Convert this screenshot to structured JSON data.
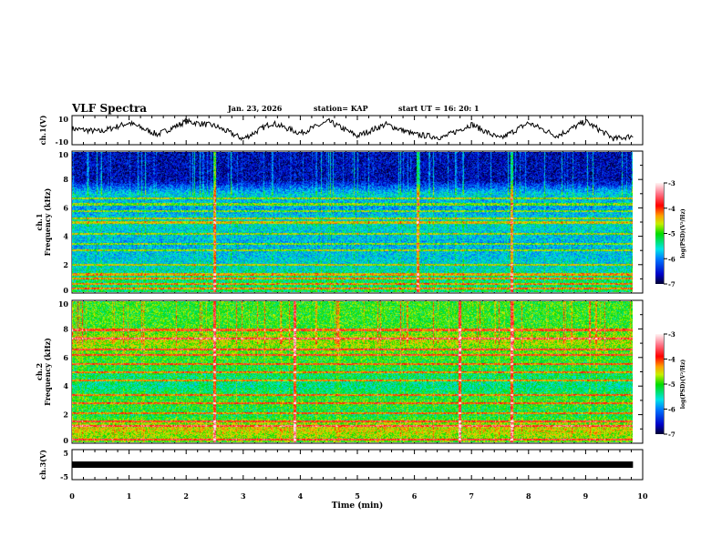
{
  "header": {
    "title": "VLF Spectra",
    "date": "Jan. 23, 2026",
    "station": "station= KAP",
    "start": "start  UT =   16: 20: 1"
  },
  "chart_data": [
    {
      "type": "line",
      "name": "ch1",
      "ylabel": "ch.1(V)",
      "ylim": [
        -10,
        10
      ],
      "yticks": [
        "10",
        "-10"
      ],
      "x": [
        0,
        0.5,
        1,
        1.5,
        2,
        2.5,
        3,
        3.5,
        4,
        4.5,
        5,
        5.5,
        6,
        6.5,
        7,
        7.5,
        8,
        8.5,
        9,
        9.5,
        9.83
      ],
      "y": [
        1,
        -1,
        5,
        -3,
        6,
        3,
        -6,
        5,
        -2,
        6,
        -4,
        4,
        -3,
        -5,
        4,
        -6,
        5,
        -4,
        6,
        -6,
        -4
      ]
    },
    {
      "type": "heatmap",
      "name": "ch2-spectrogram",
      "ylabel": "ch.1\nFrequency (kHz)",
      "ylim": [
        0,
        10
      ],
      "yticks": [
        "0",
        "2",
        "4",
        "6",
        "8",
        "10"
      ],
      "colorbar": {
        "label": "log(PSD)(V²/Hz)",
        "range": [
          -7,
          -3
        ],
        "ticks": [
          "-3",
          "-4",
          "-5",
          "-6",
          "-7"
        ]
      },
      "background_by_khz": [
        [
          0,
          -5.2
        ],
        [
          1,
          -5.3
        ],
        [
          2,
          -5.6
        ],
        [
          3.5,
          -5.8
        ],
        [
          5,
          -5.5
        ],
        [
          6,
          -5.9
        ],
        [
          7,
          -5.6
        ],
        [
          8,
          -6.6
        ],
        [
          10,
          -6.6
        ]
      ],
      "bands_khz": [
        0.3,
        0.6,
        1.0,
        1.3,
        2.0,
        3.0,
        3.5,
        4.2,
        5.0,
        5.3,
        5.8,
        6.3,
        6.7
      ],
      "impulses_min": [
        2.5,
        6.05,
        7.7
      ]
    },
    {
      "type": "heatmap",
      "name": "ch3-spectrogram",
      "ylabel": "ch.2\nFrequency (kHz)",
      "ylim": [
        0,
        10
      ],
      "yticks": [
        "0",
        "2",
        "4",
        "6",
        "8",
        "10"
      ],
      "colorbar": {
        "label": "log(PSD)(V²/Hz)",
        "range": [
          -7,
          -3
        ],
        "ticks": [
          "-3",
          "-4",
          "-5",
          "-6",
          "-7"
        ]
      },
      "background_by_khz": [
        [
          0,
          -4.9
        ],
        [
          1,
          -4.5
        ],
        [
          2,
          -5.2
        ],
        [
          3,
          -5.0
        ],
        [
          4,
          -5.4
        ],
        [
          6,
          -5.0
        ],
        [
          7.4,
          -4.6
        ],
        [
          8,
          -5.0
        ],
        [
          10,
          -5.0
        ]
      ],
      "bands_khz": [
        0.2,
        1.2,
        1.5,
        2.1,
        2.8,
        3.4,
        4.4,
        5.0,
        5.6,
        6.2,
        6.6,
        7.4,
        8.0
      ],
      "impulses_min": [
        2.5,
        3.9,
        6.8,
        7.7
      ]
    },
    {
      "type": "line",
      "name": "ch3",
      "ylabel": "ch.3(V)",
      "ylim": [
        -5,
        5
      ],
      "yticks": [
        "5",
        "-5"
      ],
      "x": [
        0,
        9.83
      ],
      "y": [
        0,
        0
      ]
    }
  ],
  "xaxis": {
    "label": "Time (min)",
    "range": [
      0,
      10
    ],
    "ticks": [
      "0",
      "1",
      "2",
      "3",
      "4",
      "5",
      "6",
      "7",
      "8",
      "9",
      "10"
    ]
  }
}
